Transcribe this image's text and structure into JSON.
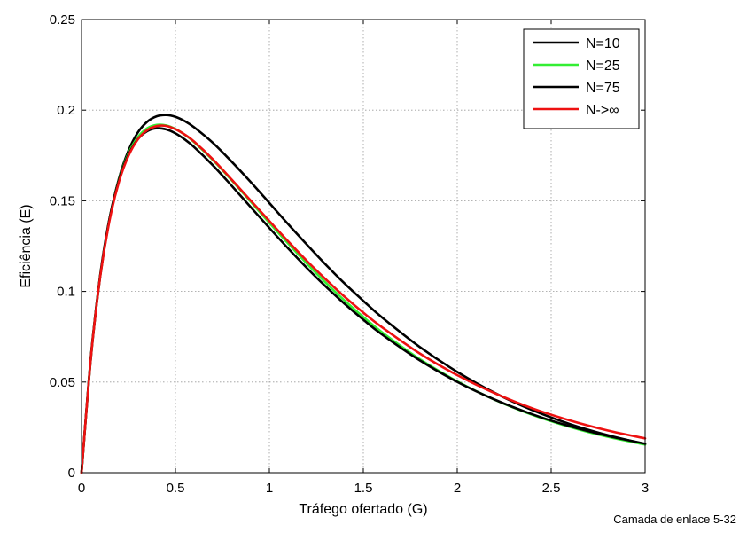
{
  "chart_data": {
    "type": "line",
    "title": "",
    "xlabel": "Tráfego ofertado (G)",
    "ylabel": "Eficiência (E)",
    "xlim": [
      0,
      3
    ],
    "ylim": [
      0,
      0.25
    ],
    "grid": true,
    "legend_position": "top-right",
    "x_ticks": [
      "0",
      "0.5",
      "1",
      "1.5",
      "2",
      "2.5",
      "3"
    ],
    "y_ticks": [
      "0",
      "0.05",
      "0.1",
      "0.15",
      "0.2",
      "0.25"
    ],
    "x": [
      0,
      0.05,
      0.1,
      0.15,
      0.2,
      0.25,
      0.3,
      0.35,
      0.4,
      0.45,
      0.5,
      0.55,
      0.6,
      0.7,
      0.8,
      0.9,
      1.0,
      1.1,
      1.2,
      1.3,
      1.4,
      1.5,
      1.6,
      1.8,
      2.0,
      2.2,
      2.4,
      2.6,
      2.8,
      3.0
    ],
    "series": [
      {
        "name": "N=10",
        "color": "#000000",
        "values": [
          0,
          0.0633,
          0.1087,
          0.1404,
          0.1626,
          0.1777,
          0.1877,
          0.1936,
          0.1966,
          0.1973,
          0.1963,
          0.1939,
          0.1905,
          0.1819,
          0.1715,
          0.1604,
          0.1488,
          0.1371,
          0.1258,
          0.1148,
          0.1044,
          0.0948,
          0.0856,
          0.0694,
          0.0556,
          0.044,
          0.0345,
          0.0268,
          0.0207,
          0.0157
        ]
      },
      {
        "name": "N=25",
        "color": "#33ee33",
        "values": [
          0,
          0.0638,
          0.1092,
          0.1406,
          0.162,
          0.1762,
          0.1851,
          0.19,
          0.1919,
          0.1916,
          0.1896,
          0.1864,
          0.1823,
          0.1724,
          0.1612,
          0.1496,
          0.1378,
          0.1264,
          0.1153,
          0.1048,
          0.095,
          0.0859,
          0.0774,
          0.0627,
          0.0504,
          0.0402,
          0.0319,
          0.0252,
          0.0198,
          0.0155
        ]
      },
      {
        "name": "N=75",
        "color": "#000000",
        "values": [
          0,
          0.0642,
          0.1095,
          0.1408,
          0.1617,
          0.1755,
          0.184,
          0.1884,
          0.19,
          0.1894,
          0.1872,
          0.1838,
          0.1796,
          0.1695,
          0.1582,
          0.1466,
          0.135,
          0.1237,
          0.1129,
          0.1027,
          0.0932,
          0.0844,
          0.0762,
          0.062,
          0.0501,
          0.0403,
          0.0322,
          0.0256,
          0.0203,
          0.016
        ]
      },
      {
        "name": "N->∞",
        "color": "#ee1111",
        "values": [
          0,
          0.0635,
          0.1086,
          0.1395,
          0.1607,
          0.1748,
          0.1839,
          0.189,
          0.1912,
          0.1913,
          0.1895,
          0.1865,
          0.1826,
          0.1728,
          0.1616,
          0.1502,
          0.1388,
          0.1276,
          0.1168,
          0.1067,
          0.0971,
          0.0883,
          0.0802,
          0.0658,
          0.0538,
          0.0438,
          0.0355,
          0.0288,
          0.0233,
          0.0189
        ]
      }
    ]
  },
  "footer": {
    "text": "Camada de enlace 5-32"
  }
}
